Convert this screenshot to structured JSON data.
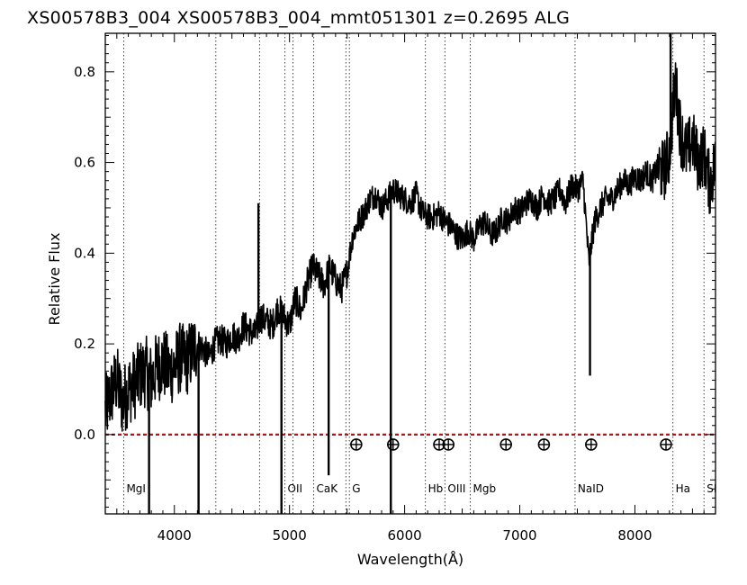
{
  "chart_data": {
    "type": "line",
    "title": "XS00578B3_004  XS00578B3_004_mmt051301  z=0.2695    ALG",
    "xlabel": "Wavelength(Å)",
    "ylabel": "Relative Flux",
    "xlim": [
      3400,
      8700
    ],
    "ylim": [
      -0.175,
      0.885
    ],
    "x_ticks": [
      4000,
      5000,
      6000,
      7000,
      8000
    ],
    "y_ticks": [
      0.0,
      0.2,
      0.4,
      0.6,
      0.8
    ],
    "x_tick_labels": [
      "4000",
      "5000",
      "6000",
      "7000",
      "8000"
    ],
    "y_tick_labels": [
      "0.0",
      "0.2",
      "0.4",
      "0.6",
      "0.8"
    ],
    "grid": false,
    "zero_line": {
      "y": 0.0,
      "color": "#b01818",
      "style": "dashed"
    },
    "spectral_lines": [
      {
        "label": "MgI",
        "x": 3560,
        "show_label": true
      },
      {
        "label": "",
        "x": 4360,
        "show_label": false
      },
      {
        "label": "",
        "x": 4740,
        "show_label": false
      },
      {
        "label": "OII",
        "x": 4960,
        "show_label": true
      },
      {
        "label": "",
        "x": 5030,
        "show_label": false
      },
      {
        "label": "CaK",
        "x": 5210,
        "show_label": true
      },
      {
        "label": "",
        "x": 5490,
        "show_label": false
      },
      {
        "label": "G",
        "x": 5520,
        "show_label": true
      },
      {
        "label": "Hb",
        "x": 6180,
        "show_label": true
      },
      {
        "label": "OIII",
        "x": 6350,
        "show_label": true
      },
      {
        "label": "Mgb",
        "x": 6570,
        "show_label": true
      },
      {
        "label": "NaID",
        "x": 7480,
        "show_label": true
      },
      {
        "label": "Ha",
        "x": 8330,
        "show_label": true
      },
      {
        "label": "SI",
        "x": 8600,
        "show_label": true
      }
    ],
    "telluric_markers": {
      "symbol": "⊕",
      "y": -0.022,
      "x": [
        5580,
        5900,
        6300,
        6380,
        6880,
        7210,
        7620,
        8270
      ]
    },
    "series": [
      {
        "color": "#000000",
        "x": [
          3400,
          3450,
          3500,
          3550,
          3600,
          3650,
          3700,
          3750,
          3800,
          3850,
          3900,
          3950,
          4000,
          4050,
          4100,
          4150,
          4200,
          4250,
          4300,
          4350,
          4400,
          4450,
          4500,
          4550,
          4600,
          4650,
          4700,
          4750,
          4800,
          4850,
          4900,
          4950,
          5000,
          5050,
          5100,
          5150,
          5200,
          5250,
          5300,
          5350,
          5400,
          5450,
          5500,
          5550,
          5600,
          5650,
          5700,
          5750,
          5800,
          5850,
          5900,
          5950,
          6000,
          6050,
          6100,
          6150,
          6200,
          6250,
          6300,
          6350,
          6400,
          6450,
          6500,
          6550,
          6600,
          6650,
          6700,
          6750,
          6800,
          6850,
          6900,
          6950,
          7000,
          7050,
          7100,
          7150,
          7200,
          7250,
          7300,
          7350,
          7400,
          7450,
          7500,
          7550,
          7600,
          7650,
          7700,
          7750,
          7800,
          7850,
          7900,
          7950,
          8000,
          8050,
          8100,
          8150,
          8200,
          8250,
          8300,
          8350,
          8400,
          8450,
          8500,
          8550,
          8600,
          8650,
          8700
        ],
        "y": [
          0.05,
          0.09,
          0.12,
          0.07,
          0.1,
          0.11,
          0.13,
          0.14,
          0.12,
          0.15,
          0.16,
          0.14,
          0.15,
          0.17,
          0.16,
          0.18,
          0.2,
          0.19,
          0.17,
          0.2,
          0.21,
          0.2,
          0.22,
          0.21,
          0.24,
          0.23,
          0.22,
          0.26,
          0.25,
          0.24,
          0.28,
          0.26,
          0.24,
          0.3,
          0.27,
          0.33,
          0.37,
          0.35,
          0.33,
          0.37,
          0.34,
          0.32,
          0.36,
          0.44,
          0.47,
          0.49,
          0.52,
          0.53,
          0.5,
          0.52,
          0.54,
          0.53,
          0.52,
          0.51,
          0.53,
          0.49,
          0.48,
          0.48,
          0.49,
          0.47,
          0.46,
          0.44,
          0.43,
          0.45,
          0.43,
          0.46,
          0.47,
          0.44,
          0.45,
          0.48,
          0.47,
          0.5,
          0.49,
          0.51,
          0.52,
          0.5,
          0.53,
          0.51,
          0.52,
          0.54,
          0.51,
          0.55,
          0.54,
          0.56,
          0.38,
          0.47,
          0.5,
          0.52,
          0.52,
          0.54,
          0.56,
          0.55,
          0.57,
          0.56,
          0.58,
          0.56,
          0.59,
          0.58,
          0.62,
          0.78,
          0.66,
          0.62,
          0.65,
          0.6,
          0.62,
          0.55,
          0.6
        ]
      }
    ],
    "absorption_spikes": [
      {
        "x": 3780,
        "y": -0.175
      },
      {
        "x": 4210,
        "y": -0.175
      },
      {
        "x": 4930,
        "y": -0.175
      },
      {
        "x": 5340,
        "y": -0.09
      },
      {
        "x": 5880,
        "y": -0.175
      },
      {
        "x": 7610,
        "y": 0.13
      }
    ],
    "emission_spikes": [
      {
        "x": 4730,
        "y": 0.51
      },
      {
        "x": 8310,
        "y": 0.885
      }
    ]
  }
}
